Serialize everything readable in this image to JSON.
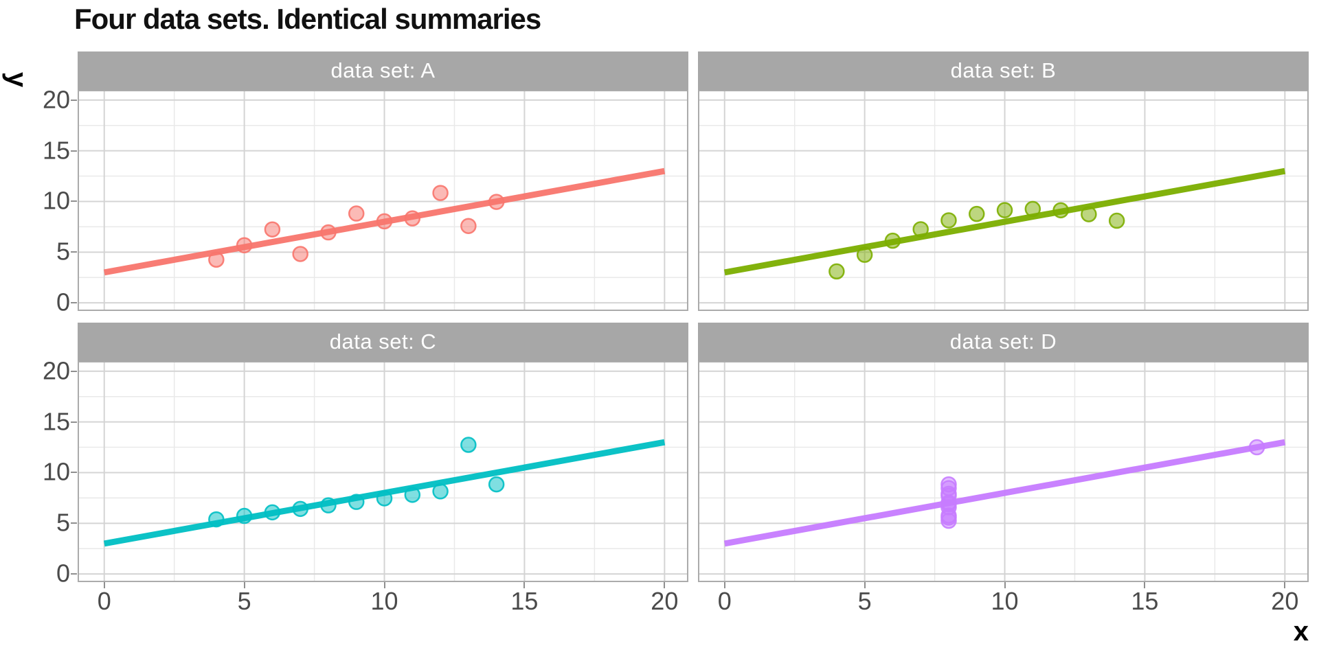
{
  "title": "Four data sets. Identical summaries",
  "chart_data": {
    "type": "scatter",
    "title": "Four data sets. Identical summaries",
    "xlabel": "x",
    "ylabel": "y",
    "xlim": [
      -0.95,
      20.85
    ],
    "ylim": [
      -0.8,
      21.0
    ],
    "x_ticks": [
      0,
      5,
      10,
      15,
      20
    ],
    "y_ticks": [
      0,
      5,
      10,
      15,
      20
    ],
    "minor_tick_step": 2.5,
    "grid": "major+minor",
    "legend": "none",
    "regression_line": {
      "intercept": 3,
      "slope": 0.5,
      "x_start": 0,
      "x_end": 20
    },
    "facets": [
      {
        "label": "data set: A",
        "color": "#F8766D",
        "points": [
          [
            10,
            8.04
          ],
          [
            8,
            6.95
          ],
          [
            13,
            7.58
          ],
          [
            9,
            8.81
          ],
          [
            11,
            8.33
          ],
          [
            14,
            9.96
          ],
          [
            6,
            7.24
          ],
          [
            4,
            4.26
          ],
          [
            12,
            10.84
          ],
          [
            7,
            4.82
          ],
          [
            5,
            5.68
          ]
        ]
      },
      {
        "label": "data set: B",
        "color": "#7CAE00",
        "points": [
          [
            10,
            9.14
          ],
          [
            8,
            8.14
          ],
          [
            13,
            8.74
          ],
          [
            9,
            8.77
          ],
          [
            11,
            9.26
          ],
          [
            14,
            8.1
          ],
          [
            6,
            6.13
          ],
          [
            4,
            3.1
          ],
          [
            12,
            9.13
          ],
          [
            7,
            7.26
          ],
          [
            5,
            4.74
          ]
        ]
      },
      {
        "label": "data set: C",
        "color": "#00BFC4",
        "points": [
          [
            10,
            7.46
          ],
          [
            8,
            6.77
          ],
          [
            13,
            12.74
          ],
          [
            9,
            7.11
          ],
          [
            11,
            7.81
          ],
          [
            14,
            8.84
          ],
          [
            6,
            6.08
          ],
          [
            4,
            5.39
          ],
          [
            12,
            8.15
          ],
          [
            7,
            6.42
          ],
          [
            5,
            5.73
          ]
        ]
      },
      {
        "label": "data set: D",
        "color": "#C77CFF",
        "points": [
          [
            8,
            6.58
          ],
          [
            8,
            5.76
          ],
          [
            8,
            7.71
          ],
          [
            8,
            8.84
          ],
          [
            8,
            8.47
          ],
          [
            8,
            7.04
          ],
          [
            8,
            5.25
          ],
          [
            19,
            12.5
          ],
          [
            8,
            5.56
          ],
          [
            8,
            7.91
          ],
          [
            8,
            6.89
          ]
        ]
      }
    ]
  },
  "style": {
    "strip_background": "#a7a7a7",
    "strip_text_color": "#ffffff",
    "grid_major_color": "#d4d4d4",
    "grid_minor_color": "#e9e9e9",
    "panel_border_color": "#ababab",
    "tick_mark_color": "#8f8f8f",
    "tick_label_color": "#4a4a4a",
    "title_color": "#111111",
    "point_fill_opacity": 0.5,
    "line_width": 9,
    "point_radius": 10.5
  }
}
